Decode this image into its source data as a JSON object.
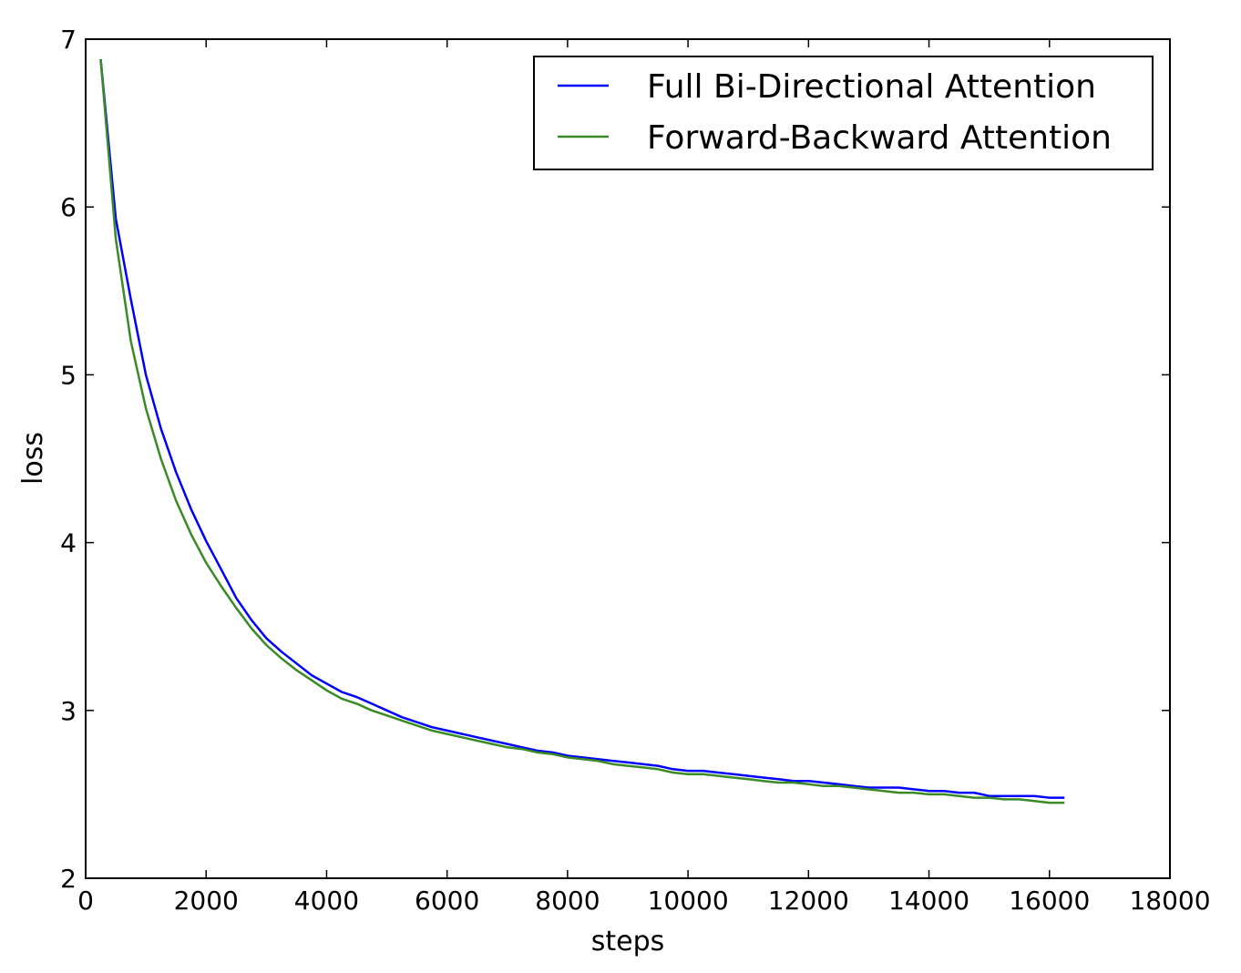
{
  "chart_data": {
    "type": "line",
    "title": "",
    "xlabel": "steps",
    "ylabel": "loss",
    "xlim": [
      0,
      18000
    ],
    "ylim": [
      2,
      7
    ],
    "xticks": [
      0,
      2000,
      4000,
      6000,
      8000,
      10000,
      12000,
      14000,
      16000,
      18000
    ],
    "yticks": [
      2,
      3,
      4,
      5,
      6,
      7
    ],
    "grid": false,
    "legend_position": "top-right",
    "x": [
      250,
      500,
      750,
      1000,
      1250,
      1500,
      1750,
      2000,
      2250,
      2500,
      2750,
      3000,
      3250,
      3500,
      3750,
      4000,
      4250,
      4500,
      4750,
      5000,
      5250,
      5500,
      5750,
      6000,
      6250,
      6500,
      6750,
      7000,
      7250,
      7500,
      7750,
      8000,
      8250,
      8500,
      8750,
      9000,
      9250,
      9500,
      9750,
      10000,
      10250,
      10500,
      10750,
      11000,
      11250,
      11500,
      11750,
      12000,
      12250,
      12500,
      12750,
      13000,
      13250,
      13500,
      13750,
      14000,
      14250,
      14500,
      14750,
      15000,
      15250,
      15500,
      15750,
      16000,
      16250
    ],
    "series": [
      {
        "name": "Full Bi-Directional Attention",
        "color": "#0000ff",
        "values": [
          6.88,
          5.93,
          5.45,
          5.0,
          4.68,
          4.42,
          4.2,
          4.01,
          3.84,
          3.67,
          3.54,
          3.43,
          3.35,
          3.28,
          3.21,
          3.16,
          3.11,
          3.08,
          3.04,
          3.0,
          2.96,
          2.93,
          2.9,
          2.88,
          2.86,
          2.84,
          2.82,
          2.8,
          2.78,
          2.76,
          2.75,
          2.73,
          2.72,
          2.71,
          2.7,
          2.69,
          2.68,
          2.67,
          2.65,
          2.64,
          2.64,
          2.63,
          2.62,
          2.61,
          2.6,
          2.59,
          2.58,
          2.58,
          2.57,
          2.56,
          2.55,
          2.54,
          2.54,
          2.54,
          2.53,
          2.52,
          2.52,
          2.51,
          2.51,
          2.49,
          2.49,
          2.49,
          2.49,
          2.48,
          2.48
        ]
      },
      {
        "name": "Forward-Backward Attention",
        "color": "#3a8a26",
        "values": [
          6.88,
          5.81,
          5.2,
          4.8,
          4.5,
          4.25,
          4.05,
          3.88,
          3.74,
          3.61,
          3.49,
          3.39,
          3.31,
          3.24,
          3.18,
          3.12,
          3.07,
          3.04,
          3.0,
          2.97,
          2.94,
          2.91,
          2.88,
          2.86,
          2.84,
          2.82,
          2.8,
          2.78,
          2.77,
          2.75,
          2.74,
          2.72,
          2.71,
          2.7,
          2.68,
          2.67,
          2.66,
          2.65,
          2.63,
          2.62,
          2.62,
          2.61,
          2.6,
          2.59,
          2.58,
          2.57,
          2.57,
          2.56,
          2.55,
          2.55,
          2.54,
          2.53,
          2.52,
          2.51,
          2.51,
          2.5,
          2.5,
          2.49,
          2.48,
          2.48,
          2.47,
          2.47,
          2.46,
          2.45,
          2.45
        ]
      }
    ]
  }
}
